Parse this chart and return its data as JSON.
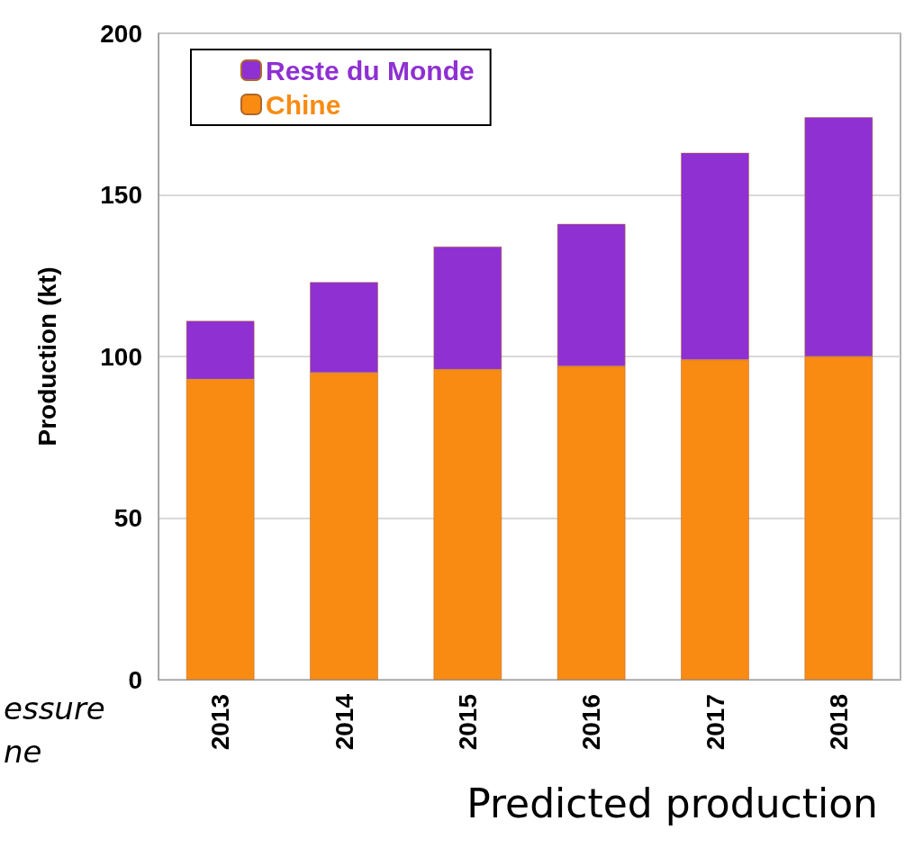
{
  "chart_data": {
    "type": "bar",
    "stacked": true,
    "ylabel": "Production (kt)",
    "xlabel": "Predicted production",
    "categories": [
      "2013",
      "2014",
      "2015",
      "2016",
      "2017",
      "2018"
    ],
    "series": [
      {
        "name": "Chine",
        "color": "#f98b12",
        "values": [
          93,
          95,
          96,
          97,
          99,
          100
        ]
      },
      {
        "name": "Reste du Monde",
        "color": "#8e30d2",
        "values": [
          18,
          28,
          38,
          44,
          64,
          74
        ]
      }
    ],
    "ylim": [
      0,
      200
    ],
    "yticks": [
      0,
      50,
      100,
      150,
      200
    ],
    "grid": "y",
    "legend": "top left",
    "annotations": [
      "essure",
      "ne"
    ]
  }
}
